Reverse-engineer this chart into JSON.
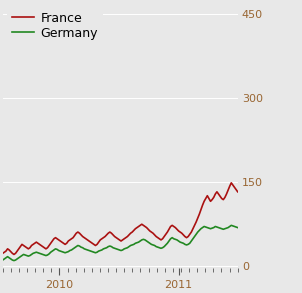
{
  "france_data": [
    22,
    24,
    26,
    30,
    28,
    25,
    22,
    20,
    22,
    26,
    30,
    34,
    38,
    36,
    34,
    32,
    30,
    32,
    36,
    38,
    40,
    42,
    40,
    38,
    36,
    34,
    32,
    30,
    32,
    36,
    40,
    44,
    48,
    50,
    48,
    46,
    44,
    42,
    40,
    38,
    40,
    44,
    46,
    48,
    50,
    54,
    58,
    60,
    58,
    55,
    52,
    50,
    48,
    46,
    44,
    42,
    40,
    38,
    36,
    38,
    42,
    46,
    48,
    50,
    52,
    55,
    58,
    60,
    58,
    55,
    52,
    50,
    48,
    46,
    44,
    46,
    48,
    50,
    52,
    55,
    58,
    60,
    63,
    66,
    68,
    70,
    72,
    74,
    72,
    70,
    68,
    65,
    62,
    60,
    58,
    55,
    52,
    50,
    48,
    46,
    48,
    52,
    56,
    60,
    65,
    70,
    72,
    70,
    68,
    65,
    62,
    60,
    58,
    55,
    52,
    50,
    52,
    56,
    60,
    66,
    72,
    78,
    85,
    92,
    100,
    108,
    115,
    120,
    125,
    120,
    115,
    118,
    122,
    128,
    132,
    128,
    124,
    120,
    118,
    122,
    128,
    135,
    142,
    148,
    144,
    140,
    136,
    132
  ],
  "germany_data": [
    10,
    12,
    14,
    16,
    14,
    12,
    10,
    9,
    10,
    12,
    14,
    16,
    18,
    20,
    19,
    18,
    17,
    18,
    20,
    22,
    23,
    24,
    23,
    22,
    21,
    20,
    19,
    18,
    19,
    21,
    24,
    26,
    28,
    30,
    29,
    27,
    26,
    25,
    24,
    23,
    24,
    25,
    27,
    28,
    30,
    32,
    34,
    36,
    35,
    33,
    32,
    30,
    29,
    28,
    27,
    26,
    25,
    24,
    23,
    24,
    26,
    27,
    28,
    30,
    31,
    32,
    34,
    35,
    34,
    32,
    31,
    30,
    29,
    28,
    27,
    28,
    30,
    31,
    32,
    34,
    36,
    37,
    38,
    40,
    41,
    42,
    44,
    46,
    47,
    46,
    44,
    42,
    40,
    38,
    37,
    36,
    34,
    33,
    32,
    31,
    32,
    34,
    37,
    40,
    44,
    48,
    50,
    48,
    47,
    46,
    44,
    42,
    41,
    40,
    38,
    37,
    38,
    40,
    44,
    48,
    52,
    56,
    60,
    63,
    66,
    68,
    70,
    69,
    68,
    67,
    66,
    67,
    68,
    70,
    69,
    68,
    67,
    66,
    65,
    66,
    67,
    68,
    70,
    72,
    71,
    70,
    69,
    68
  ],
  "france_color": "#aa1111",
  "germany_color": "#228822",
  "background_color": "#e8e8e8",
  "yticks": [
    0,
    150,
    300,
    450
  ],
  "ylim": [
    -5,
    470
  ],
  "xlim_min": 0,
  "xlim_max": 147,
  "france_label": "France",
  "germany_label": "Germany",
  "xtick_positions": [
    35,
    110
  ],
  "xtick_labels": [
    "2010",
    "2011"
  ],
  "minor_tick_count": 30,
  "legend_fontsize": 9,
  "tick_fontsize": 8,
  "linewidth": 1.2,
  "grid_color": "#ffffff",
  "grid_linewidth": 0.7
}
